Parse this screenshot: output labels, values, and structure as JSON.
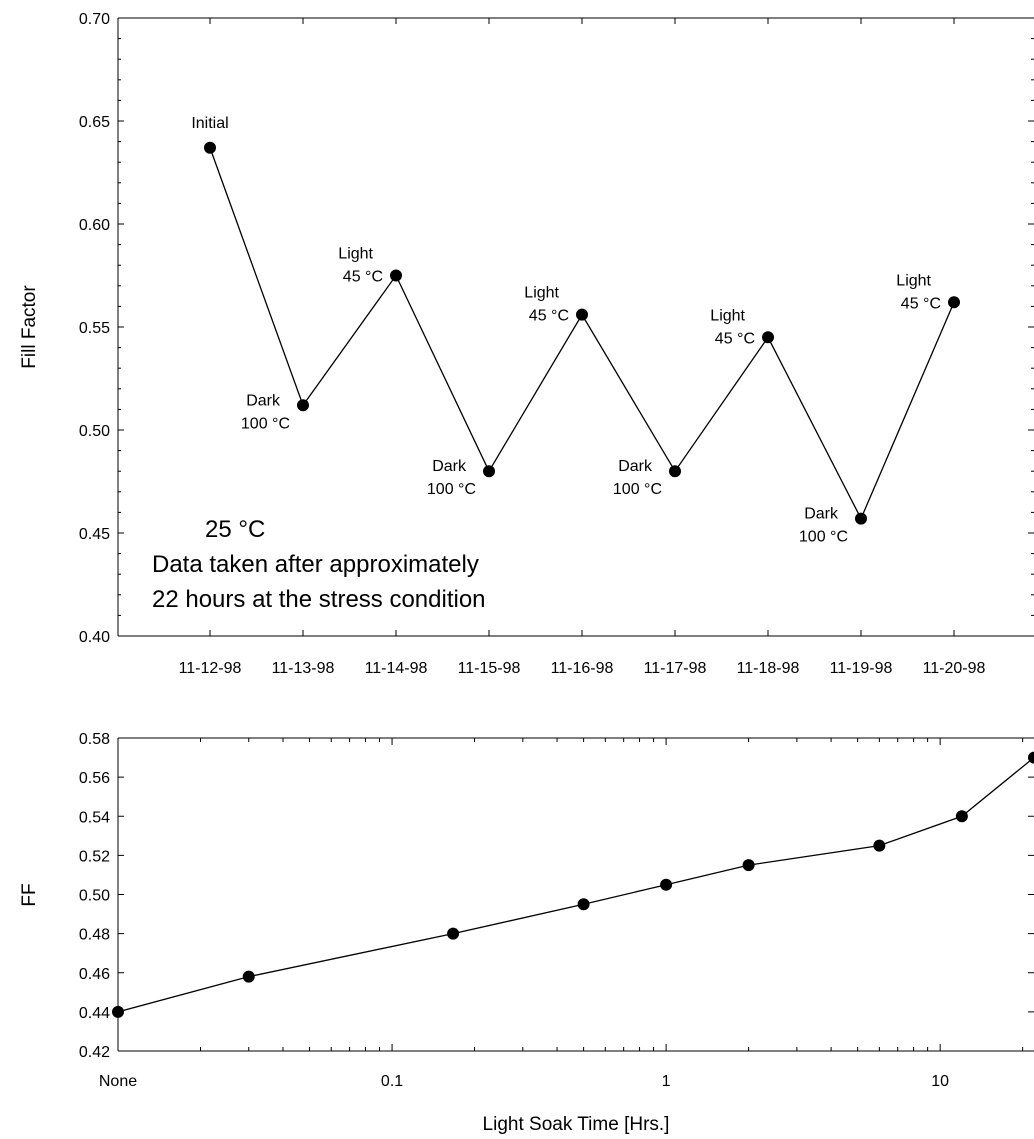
{
  "chart_data": [
    {
      "type": "line",
      "title": "",
      "ylabel": "Fill Factor",
      "xlabel": "",
      "ylim": [
        0.4,
        0.7
      ],
      "yticks": [
        "0.40",
        "0.45",
        "0.50",
        "0.55",
        "0.60",
        "0.65",
        "0.70"
      ],
      "categories": [
        "11-12-98",
        "11-13-98",
        "11-14-98",
        "11-15-98",
        "11-16-98",
        "11-17-98",
        "11-18-98",
        "11-19-98",
        "11-20-98"
      ],
      "values": [
        0.637,
        0.512,
        0.575,
        0.48,
        0.556,
        0.48,
        0.545,
        0.457,
        0.562
      ],
      "point_labels": [
        [
          "Initial"
        ],
        [
          "Dark",
          "100 °C"
        ],
        [
          "Light",
          "45 °C"
        ],
        [
          "Dark",
          "100 °C"
        ],
        [
          "Light",
          "45 °C"
        ],
        [
          "Dark",
          "100 °C"
        ],
        [
          "Light",
          "45 °C"
        ],
        [
          "Dark",
          "100 °C"
        ],
        [
          "Light",
          "45 °C"
        ]
      ],
      "annotation": {
        "temperature": "25 °C",
        "line1": "Data taken after approximately",
        "line2": "22 hours at the stress condition"
      },
      "grid": false,
      "color": "#000000"
    },
    {
      "type": "line",
      "title": "",
      "ylabel": "FF",
      "xlabel": "Light Soak Time [Hrs.]",
      "xscale": "log",
      "xlim": [
        0.01,
        22
      ],
      "ylim": [
        0.42,
        0.58
      ],
      "yticks": [
        "0.42",
        "0.44",
        "0.46",
        "0.48",
        "0.50",
        "0.52",
        "0.54",
        "0.56",
        "0.58"
      ],
      "xticks": [
        {
          "value": 0.01,
          "label": "None"
        },
        {
          "value": 0.1,
          "label": "0.1"
        },
        {
          "value": 1,
          "label": "1"
        },
        {
          "value": 10,
          "label": "10"
        }
      ],
      "x": [
        0.01,
        0.03,
        0.167,
        0.5,
        1,
        2,
        6,
        12,
        22
      ],
      "y": [
        0.44,
        0.458,
        0.48,
        0.495,
        0.505,
        0.515,
        0.525,
        0.54,
        0.57
      ],
      "grid": false,
      "color": "#000000"
    }
  ]
}
